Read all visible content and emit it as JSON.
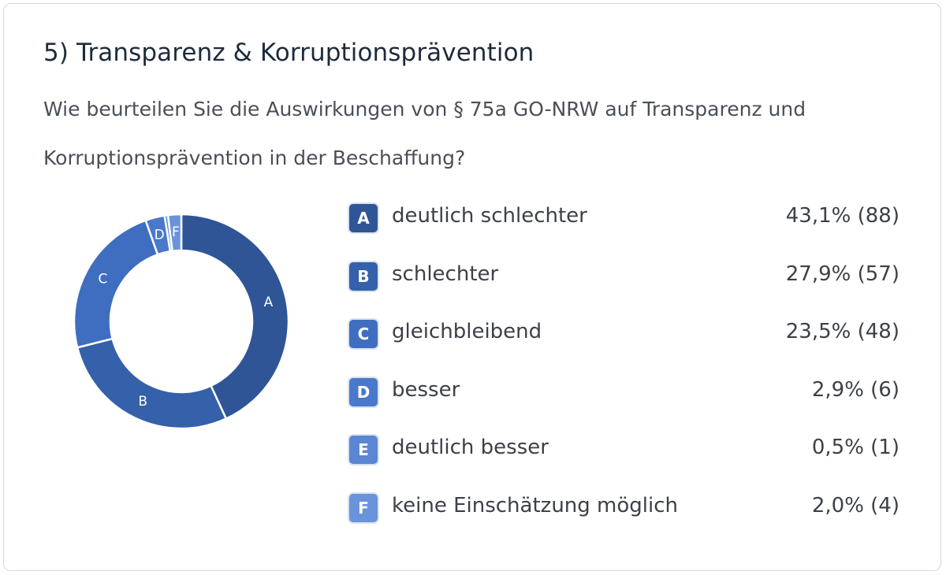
{
  "title": "5) Transparenz & Korruptionsprävention",
  "question": "Wie beurteilen Sie die Auswirkungen von § 75a GO-NRW auf Transparenz und Korruptionsprävention in der Beschaffung?",
  "chart_data": {
    "type": "pie",
    "donut": true,
    "categories": [
      "A",
      "B",
      "C",
      "D",
      "E",
      "F"
    ],
    "labels": [
      "deutlich schlechter",
      "schlechter",
      "gleichbleibend",
      "besser",
      "deutlich besser",
      "keine Einschätzung möglich"
    ],
    "values": [
      43.1,
      27.9,
      23.5,
      2.9,
      0.5,
      2.0
    ],
    "counts": [
      88,
      57,
      48,
      6,
      1,
      4
    ],
    "value_texts": [
      "43,1% (88)",
      "27,9% (57)",
      "23,5% (48)",
      "2,9% (6)",
      "0,5% (1)",
      "2,0% (4)"
    ],
    "slice_labels": [
      "A",
      "B",
      "C",
      "D",
      "",
      "F"
    ],
    "colors": [
      "#2f5597",
      "#3560aa",
      "#3f6ec0",
      "#4a79cc",
      "#5a86d3",
      "#6993da"
    ],
    "legend_position": "right"
  }
}
